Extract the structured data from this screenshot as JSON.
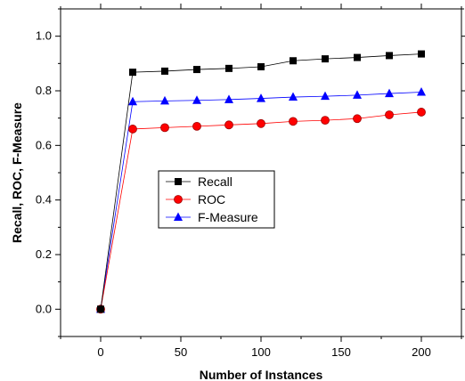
{
  "chart_data": {
    "type": "line",
    "xlabel": "Number of Instances",
    "ylabel": "Recall, ROC, F-Measure",
    "xlim": [
      -25,
      225
    ],
    "ylim": [
      -0.1,
      1.1
    ],
    "x_ticks": [
      "0",
      "50",
      "100",
      "150",
      "200"
    ],
    "y_ticks": [
      "0.0",
      "0.2",
      "0.4",
      "0.6",
      "0.8",
      "1.0"
    ],
    "x": [
      0,
      20,
      40,
      60,
      80,
      100,
      120,
      140,
      160,
      180,
      200
    ],
    "legend_position": "center-left",
    "series": [
      {
        "name": "Recall",
        "marker": "square",
        "color": "#000000",
        "values": [
          0.0,
          0.868,
          0.872,
          0.878,
          0.882,
          0.888,
          0.91,
          0.917,
          0.922,
          0.929,
          0.935
        ]
      },
      {
        "name": "ROC",
        "marker": "circle",
        "color": "#ff0000",
        "values": [
          0.0,
          0.66,
          0.665,
          0.67,
          0.675,
          0.68,
          0.688,
          0.692,
          0.698,
          0.712,
          0.722
        ]
      },
      {
        "name": "F-Measure",
        "marker": "triangle",
        "color": "#0000ff",
        "values": [
          0.0,
          0.76,
          0.763,
          0.765,
          0.768,
          0.772,
          0.777,
          0.78,
          0.784,
          0.79,
          0.795
        ]
      }
    ]
  }
}
